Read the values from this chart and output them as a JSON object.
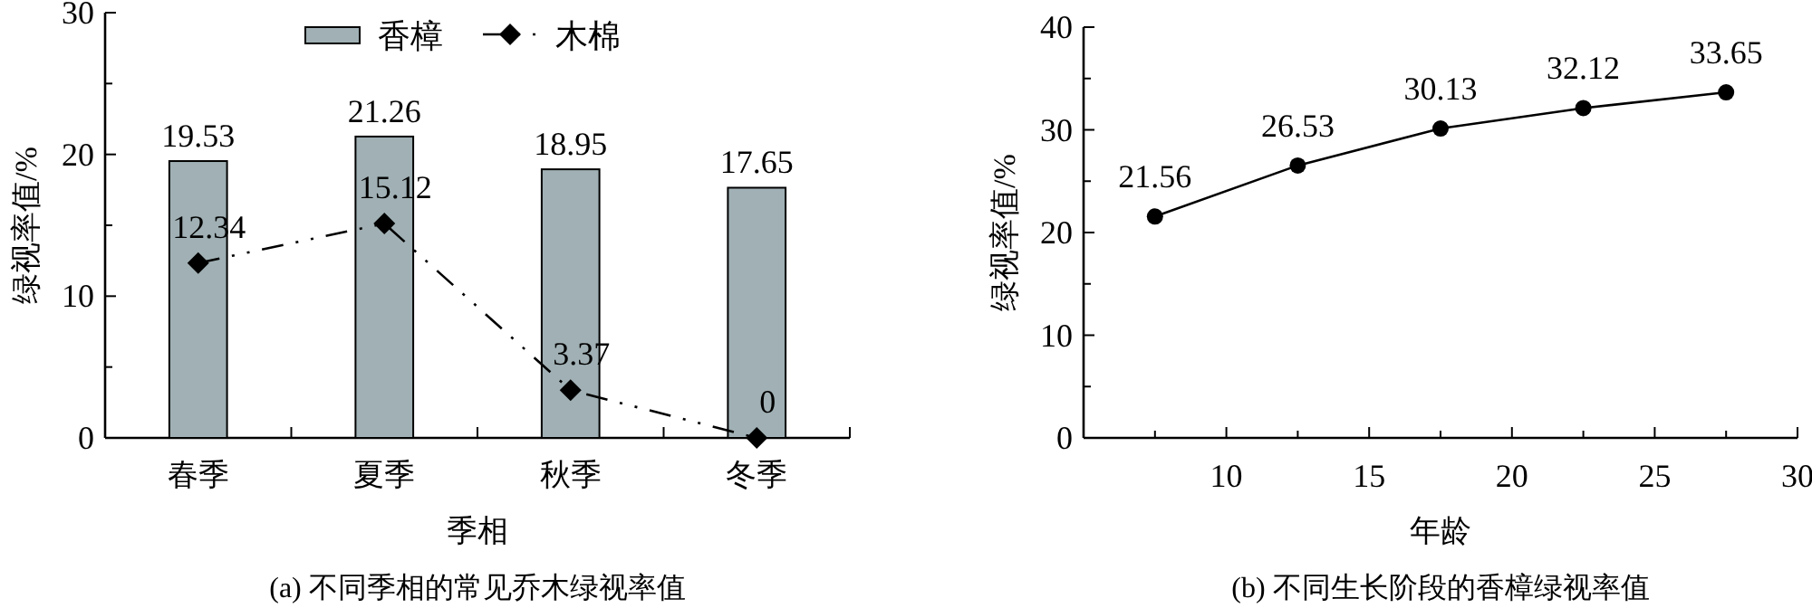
{
  "chart_data": [
    {
      "type": "bar",
      "title": "(a) 不同季相的常见乔木绿视率值",
      "xlabel": "季相",
      "ylabel": "绿视率值/%",
      "categories": [
        "春季",
        "夏季",
        "秋季",
        "冬季"
      ],
      "series": [
        {
          "name": "香樟",
          "type": "bar",
          "color": "#a0b0b4",
          "values": [
            19.53,
            21.26,
            18.95,
            17.65
          ]
        },
        {
          "name": "木棉",
          "type": "line",
          "color": "#000000",
          "marker": "diamond",
          "line_style": "dashed",
          "values": [
            12.34,
            15.12,
            3.37,
            0
          ]
        }
      ],
      "ylim": [
        0,
        30
      ],
      "yticks": [
        0,
        {
          "value": 5,
          "label": null
        },
        10,
        {
          "value": 15,
          "label": null
        },
        20,
        {
          "value": 25,
          "label": null
        },
        30
      ],
      "data_labels": true,
      "legend": "top",
      "grid": false
    },
    {
      "type": "line",
      "title": "(b) 不同生长阶段的香樟绿视率值",
      "xlabel": "年龄",
      "ylabel": "绿视率值/%",
      "x": [
        7.5,
        12.5,
        17.5,
        22.5,
        27.5
      ],
      "series": [
        {
          "color": "#000000",
          "marker": "circle",
          "line_style": "solid",
          "values": [
            21.56,
            26.53,
            30.13,
            32.12,
            33.65
          ]
        }
      ],
      "xlim": [
        5,
        30
      ],
      "xticks": [
        {
          "value": 7.5,
          "label": null
        },
        10,
        {
          "value": 12.5,
          "label": null
        },
        15,
        {
          "value": 17.5,
          "label": null
        },
        20,
        {
          "value": 22.5,
          "label": null
        },
        25,
        {
          "value": 27.5,
          "label": null
        },
        30
      ],
      "ylim": [
        0,
        40
      ],
      "yticks": [
        0,
        {
          "value": 5,
          "label": null
        },
        10,
        {
          "value": 15,
          "label": null
        },
        20,
        {
          "value": 25,
          "label": null
        },
        30,
        {
          "value": 35,
          "label": null
        },
        40
      ],
      "data_labels": true,
      "legend": false,
      "grid": false
    }
  ]
}
